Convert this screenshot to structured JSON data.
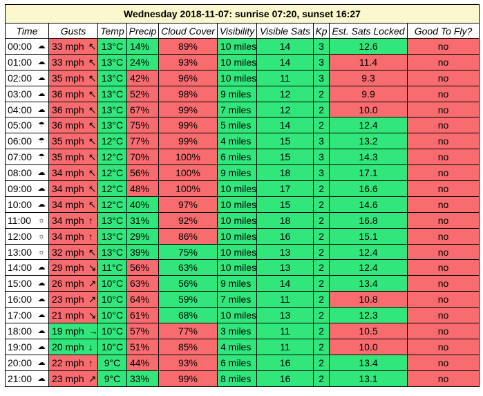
{
  "caption": "Wednesday 2018-11-07: sunrise 07:20, sunset 16:27",
  "columns": [
    "Time",
    "Gusts",
    "Temp",
    "Precip",
    "Cloud Cover",
    "Visibility",
    "Visible Sats",
    "Kp",
    "Est. Sats Locked",
    "Good To Fly?"
  ],
  "colors": {
    "good": "#31e67b",
    "bad": "#f86b6f",
    "caption_bg": "#fbf8cf"
  },
  "rows": [
    {
      "time": "00:00",
      "icon": "partly-cloudy-icon",
      "icon_glyph": "☁",
      "gusts": "33 mph",
      "dir": "↖",
      "temp": "13°C",
      "precip": "14%",
      "cloud": "89%",
      "visibility": "10 miles",
      "sats": "14",
      "kp": "3",
      "locked": "12.6",
      "fly": "no",
      "status": {
        "gusts": "r",
        "temp": "g",
        "precip": "g",
        "cloud": "r",
        "visibility": "g",
        "sats": "g",
        "kp": "g",
        "locked": "g",
        "fly": "r"
      }
    },
    {
      "time": "01:00",
      "icon": "partly-cloudy-icon",
      "icon_glyph": "☁",
      "gusts": "33 mph",
      "dir": "↖",
      "temp": "13°C",
      "precip": "24%",
      "cloud": "93%",
      "visibility": "10 miles",
      "sats": "14",
      "kp": "3",
      "locked": "11.4",
      "fly": "no",
      "status": {
        "gusts": "r",
        "temp": "g",
        "precip": "g",
        "cloud": "r",
        "visibility": "g",
        "sats": "g",
        "kp": "g",
        "locked": "r",
        "fly": "r"
      }
    },
    {
      "time": "02:00",
      "icon": "cloud-icon",
      "icon_glyph": "☁",
      "gusts": "35 mph",
      "dir": "↖",
      "temp": "13°C",
      "precip": "42%",
      "cloud": "96%",
      "visibility": "10 miles",
      "sats": "11",
      "kp": "3",
      "locked": "9.3",
      "fly": "no",
      "status": {
        "gusts": "r",
        "temp": "g",
        "precip": "r",
        "cloud": "r",
        "visibility": "g",
        "sats": "g",
        "kp": "g",
        "locked": "r",
        "fly": "r"
      }
    },
    {
      "time": "03:00",
      "icon": "cloud-icon",
      "icon_glyph": "☁",
      "gusts": "36 mph",
      "dir": "↖",
      "temp": "13°C",
      "precip": "52%",
      "cloud": "98%",
      "visibility": "9 miles",
      "sats": "12",
      "kp": "2",
      "locked": "9.9",
      "fly": "no",
      "status": {
        "gusts": "r",
        "temp": "g",
        "precip": "r",
        "cloud": "r",
        "visibility": "g",
        "sats": "g",
        "kp": "g",
        "locked": "r",
        "fly": "r"
      }
    },
    {
      "time": "04:00",
      "icon": "cloud-icon",
      "icon_glyph": "☁",
      "gusts": "36 mph",
      "dir": "↖",
      "temp": "13°C",
      "precip": "67%",
      "cloud": "99%",
      "visibility": "7 miles",
      "sats": "12",
      "kp": "2",
      "locked": "10.0",
      "fly": "no",
      "status": {
        "gusts": "r",
        "temp": "g",
        "precip": "r",
        "cloud": "r",
        "visibility": "g",
        "sats": "g",
        "kp": "g",
        "locked": "r",
        "fly": "r"
      }
    },
    {
      "time": "05:00",
      "icon": "rain-icon",
      "icon_glyph": "☂",
      "gusts": "36 mph",
      "dir": "↖",
      "temp": "13°C",
      "precip": "75%",
      "cloud": "99%",
      "visibility": "5 miles",
      "sats": "14",
      "kp": "2",
      "locked": "12.4",
      "fly": "no",
      "status": {
        "gusts": "r",
        "temp": "g",
        "precip": "r",
        "cloud": "r",
        "visibility": "g",
        "sats": "g",
        "kp": "g",
        "locked": "g",
        "fly": "r"
      }
    },
    {
      "time": "06:00",
      "icon": "rain-icon",
      "icon_glyph": "☂",
      "gusts": "35 mph",
      "dir": "↖",
      "temp": "12°C",
      "precip": "77%",
      "cloud": "99%",
      "visibility": "4 miles",
      "sats": "15",
      "kp": "3",
      "locked": "13.2",
      "fly": "no",
      "status": {
        "gusts": "r",
        "temp": "g",
        "precip": "r",
        "cloud": "r",
        "visibility": "g",
        "sats": "g",
        "kp": "g",
        "locked": "g",
        "fly": "r"
      }
    },
    {
      "time": "07:00",
      "icon": "rain-icon",
      "icon_glyph": "☂",
      "gusts": "35 mph",
      "dir": "↖",
      "temp": "12°C",
      "precip": "70%",
      "cloud": "100%",
      "visibility": "6 miles",
      "sats": "15",
      "kp": "3",
      "locked": "14.3",
      "fly": "no",
      "status": {
        "gusts": "r",
        "temp": "g",
        "precip": "r",
        "cloud": "r",
        "visibility": "g",
        "sats": "g",
        "kp": "g",
        "locked": "g",
        "fly": "r"
      }
    },
    {
      "time": "08:00",
      "icon": "cloud-icon",
      "icon_glyph": "☁",
      "gusts": "34 mph",
      "dir": "↖",
      "temp": "12°C",
      "precip": "56%",
      "cloud": "100%",
      "visibility": "9 miles",
      "sats": "18",
      "kp": "3",
      "locked": "17.1",
      "fly": "no",
      "status": {
        "gusts": "r",
        "temp": "g",
        "precip": "r",
        "cloud": "r",
        "visibility": "g",
        "sats": "g",
        "kp": "g",
        "locked": "g",
        "fly": "r"
      }
    },
    {
      "time": "09:00",
      "icon": "cloud-icon",
      "icon_glyph": "☁",
      "gusts": "34 mph",
      "dir": "↖",
      "temp": "12°C",
      "precip": "48%",
      "cloud": "100%",
      "visibility": "10 miles",
      "sats": "17",
      "kp": "2",
      "locked": "16.6",
      "fly": "no",
      "status": {
        "gusts": "r",
        "temp": "g",
        "precip": "r",
        "cloud": "r",
        "visibility": "g",
        "sats": "g",
        "kp": "g",
        "locked": "g",
        "fly": "r"
      }
    },
    {
      "time": "10:00",
      "icon": "cloud-icon",
      "icon_glyph": "☁",
      "gusts": "34 mph",
      "dir": "↖",
      "temp": "12°C",
      "precip": "40%",
      "cloud": "97%",
      "visibility": "10 miles",
      "sats": "15",
      "kp": "2",
      "locked": "14.6",
      "fly": "no",
      "status": {
        "gusts": "r",
        "temp": "g",
        "precip": "g",
        "cloud": "r",
        "visibility": "g",
        "sats": "g",
        "kp": "g",
        "locked": "g",
        "fly": "r"
      }
    },
    {
      "time": "11:00",
      "icon": "sun-icon",
      "icon_glyph": "☼",
      "gusts": "34 mph",
      "dir": "↑",
      "temp": "13°C",
      "precip": "31%",
      "cloud": "92%",
      "visibility": "10 miles",
      "sats": "18",
      "kp": "2",
      "locked": "16.8",
      "fly": "no",
      "status": {
        "gusts": "r",
        "temp": "g",
        "precip": "g",
        "cloud": "r",
        "visibility": "g",
        "sats": "g",
        "kp": "g",
        "locked": "g",
        "fly": "r"
      }
    },
    {
      "time": "12:00",
      "icon": "sun-icon",
      "icon_glyph": "☼",
      "gusts": "34 mph",
      "dir": "↑",
      "temp": "13°C",
      "precip": "29%",
      "cloud": "86%",
      "visibility": "10 miles",
      "sats": "16",
      "kp": "2",
      "locked": "15.1",
      "fly": "no",
      "status": {
        "gusts": "r",
        "temp": "g",
        "precip": "g",
        "cloud": "r",
        "visibility": "g",
        "sats": "g",
        "kp": "g",
        "locked": "g",
        "fly": "r"
      }
    },
    {
      "time": "13:00",
      "icon": "sun-icon",
      "icon_glyph": "☼",
      "gusts": "32 mph",
      "dir": "↖",
      "temp": "13°C",
      "precip": "39%",
      "cloud": "75%",
      "visibility": "10 miles",
      "sats": "13",
      "kp": "2",
      "locked": "12.4",
      "fly": "no",
      "status": {
        "gusts": "r",
        "temp": "g",
        "precip": "g",
        "cloud": "g",
        "visibility": "g",
        "sats": "g",
        "kp": "g",
        "locked": "g",
        "fly": "r"
      }
    },
    {
      "time": "14:00",
      "icon": "cloud-icon",
      "icon_glyph": "☁",
      "gusts": "29 mph",
      "dir": "↘",
      "temp": "11°C",
      "precip": "56%",
      "cloud": "63%",
      "visibility": "10 miles",
      "sats": "13",
      "kp": "2",
      "locked": "12.4",
      "fly": "no",
      "status": {
        "gusts": "r",
        "temp": "g",
        "precip": "r",
        "cloud": "g",
        "visibility": "g",
        "sats": "g",
        "kp": "g",
        "locked": "g",
        "fly": "r"
      }
    },
    {
      "time": "15:00",
      "icon": "cloud-icon",
      "icon_glyph": "☁",
      "gusts": "26 mph",
      "dir": "↗",
      "temp": "10°C",
      "precip": "63%",
      "cloud": "56%",
      "visibility": "9 miles",
      "sats": "14",
      "kp": "2",
      "locked": "13.4",
      "fly": "no",
      "status": {
        "gusts": "r",
        "temp": "g",
        "precip": "r",
        "cloud": "g",
        "visibility": "g",
        "sats": "g",
        "kp": "g",
        "locked": "g",
        "fly": "r"
      }
    },
    {
      "time": "16:00",
      "icon": "cloud-icon",
      "icon_glyph": "☁",
      "gusts": "23 mph",
      "dir": "↗",
      "temp": "10°C",
      "precip": "64%",
      "cloud": "59%",
      "visibility": "7 miles",
      "sats": "11",
      "kp": "2",
      "locked": "10.8",
      "fly": "no",
      "status": {
        "gusts": "r",
        "temp": "g",
        "precip": "r",
        "cloud": "g",
        "visibility": "g",
        "sats": "g",
        "kp": "g",
        "locked": "r",
        "fly": "r"
      }
    },
    {
      "time": "17:00",
      "icon": "cloud-icon",
      "icon_glyph": "☁",
      "gusts": "21 mph",
      "dir": "↘",
      "temp": "10°C",
      "precip": "61%",
      "cloud": "68%",
      "visibility": "10 miles",
      "sats": "13",
      "kp": "2",
      "locked": "12.3",
      "fly": "no",
      "status": {
        "gusts": "r",
        "temp": "g",
        "precip": "r",
        "cloud": "g",
        "visibility": "g",
        "sats": "g",
        "kp": "g",
        "locked": "g",
        "fly": "r"
      }
    },
    {
      "time": "18:00",
      "icon": "cloud-icon",
      "icon_glyph": "☁",
      "gusts": "19 mph",
      "dir": "→",
      "temp": "10°C",
      "precip": "57%",
      "cloud": "77%",
      "visibility": "3 miles",
      "sats": "11",
      "kp": "2",
      "locked": "10.5",
      "fly": "no",
      "status": {
        "gusts": "g",
        "temp": "g",
        "precip": "r",
        "cloud": "r",
        "visibility": "g",
        "sats": "g",
        "kp": "g",
        "locked": "r",
        "fly": "r"
      }
    },
    {
      "time": "19:00",
      "icon": "cloud-icon",
      "icon_glyph": "☁",
      "gusts": "20 mph",
      "dir": "↓",
      "temp": "10°C",
      "precip": "51%",
      "cloud": "85%",
      "visibility": "4 miles",
      "sats": "11",
      "kp": "2",
      "locked": "10.0",
      "fly": "no",
      "status": {
        "gusts": "g",
        "temp": "g",
        "precip": "r",
        "cloud": "r",
        "visibility": "g",
        "sats": "g",
        "kp": "g",
        "locked": "r",
        "fly": "r"
      }
    },
    {
      "time": "20:00",
      "icon": "partly-cloudy-icon",
      "icon_glyph": "☁",
      "gusts": "22 mph",
      "dir": "↑",
      "temp": "9°C",
      "precip": "44%",
      "cloud": "93%",
      "visibility": "6 miles",
      "sats": "16",
      "kp": "2",
      "locked": "13.4",
      "fly": "no",
      "status": {
        "gusts": "r",
        "temp": "g",
        "precip": "r",
        "cloud": "r",
        "visibility": "g",
        "sats": "g",
        "kp": "g",
        "locked": "g",
        "fly": "r"
      }
    },
    {
      "time": "21:00",
      "icon": "cloud-icon",
      "icon_glyph": "☁",
      "gusts": "23 mph",
      "dir": "↗",
      "temp": "9°C",
      "precip": "33%",
      "cloud": "99%",
      "visibility": "8 miles",
      "sats": "16",
      "kp": "2",
      "locked": "13.1",
      "fly": "no",
      "status": {
        "gusts": "r",
        "temp": "g",
        "precip": "g",
        "cloud": "r",
        "visibility": "g",
        "sats": "g",
        "kp": "g",
        "locked": "g",
        "fly": "r"
      }
    }
  ]
}
